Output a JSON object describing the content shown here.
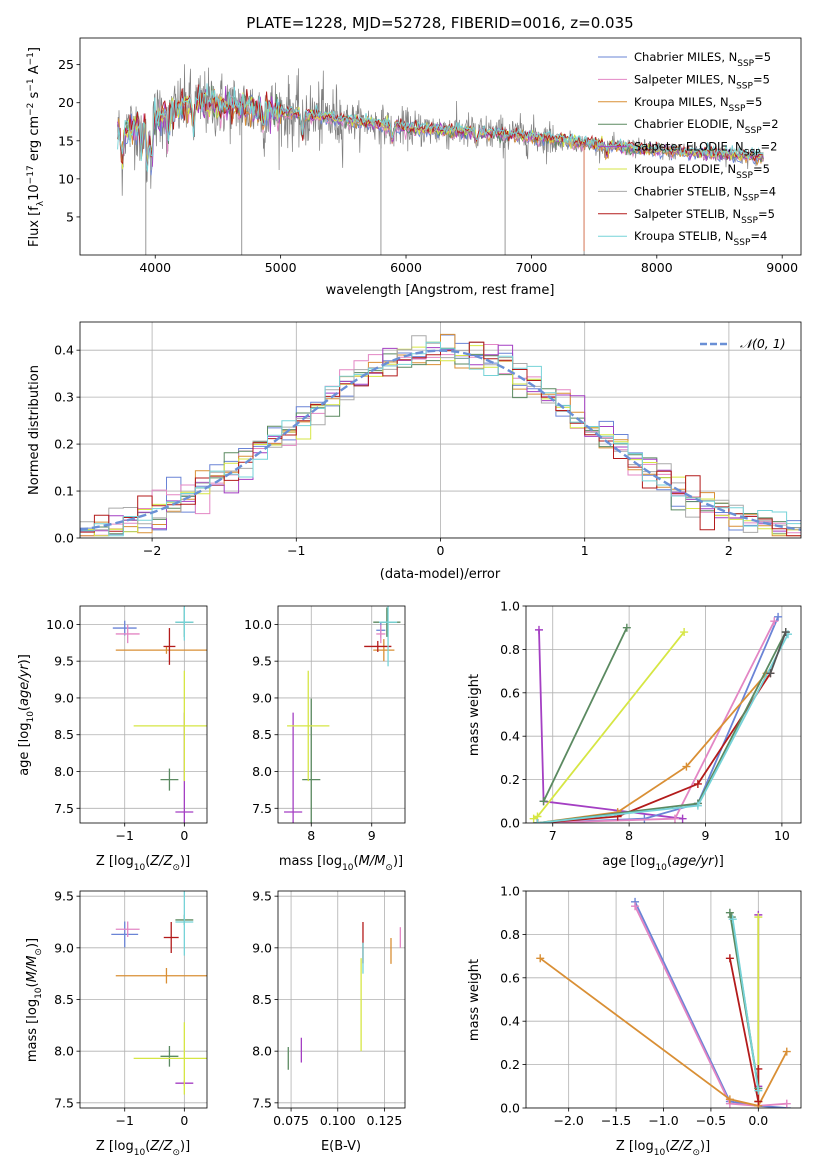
{
  "chart_data": [
    {
      "type": "line",
      "title": "PLATE=1228, MJD=52728, FIBERID=0016, z=0.035",
      "xlabel": "wavelength [Angstrom, rest frame]",
      "ylabel": "Flux [fλ10⁻¹⁷ erg cm⁻² s⁻¹ A⁻¹]",
      "xlim": [
        3400,
        9150
      ],
      "ylim": [
        0,
        28.5
      ],
      "xticks": [
        4000,
        5000,
        6000,
        7000,
        8000,
        9000
      ],
      "yticks": [
        5,
        10,
        15,
        20,
        25
      ],
      "grid": false,
      "legend_position": "upper-right",
      "data_range": [
        3700,
        8850
      ],
      "continuum": {
        "x": [
          3700,
          4000,
          4300,
          4600,
          5000,
          5500,
          6000,
          6500,
          7000,
          7500,
          8000,
          8500,
          8850
        ],
        "y": [
          16,
          18,
          20,
          19.6,
          18.8,
          17.8,
          16.7,
          16.2,
          15.6,
          14.5,
          13.8,
          13.3,
          12.9
        ]
      },
      "absorption_features": [
        [
          3735,
          4
        ],
        [
          3890,
          3.5
        ],
        [
          3935,
          6
        ],
        [
          3970,
          5.5
        ],
        [
          4102,
          3
        ],
        [
          4305,
          3
        ],
        [
          4862,
          2
        ],
        [
          5175,
          3
        ],
        [
          5892,
          2
        ],
        [
          6563,
          1.5
        ],
        [
          7600,
          1
        ]
      ],
      "series": [
        {
          "name": "Chabrier MILES, N",
          "sub": "SSP",
          "suffix": "=5",
          "color": "#6a84d6"
        },
        {
          "name": "Salpeter MILES, N",
          "sub": "SSP",
          "suffix": "=5",
          "color": "#e386c4"
        },
        {
          "name": "Kroupa MILES, N",
          "sub": "SSP",
          "suffix": "=5",
          "color": "#d98f35"
        },
        {
          "name": "Chabrier ELODIE, N",
          "sub": "SSP",
          "suffix": "=2",
          "color": "#5b8a61"
        },
        {
          "name": "Salpeter ELODIE, N",
          "sub": "SSP",
          "suffix": "=2",
          "color": "#a43fc3"
        },
        {
          "name": "Kroupa ELODIE, N",
          "sub": "SSP",
          "suffix": "=5",
          "color": "#d6e644"
        },
        {
          "name": "Chabrier STELIB, N",
          "sub": "SSP",
          "suffix": "=4",
          "color": "#aaaaaa"
        },
        {
          "name": "Salpeter STELIB, N",
          "sub": "SSP",
          "suffix": "=5",
          "color": "#b31b1b"
        },
        {
          "name": "Kroupa STELIB, N",
          "sub": "SSP",
          "suffix": "=4",
          "color": "#76d3d8"
        }
      ],
      "data_color": "#7f7f7f",
      "spikes": [
        [
          3925,
          0
        ],
        [
          4690,
          0
        ],
        [
          5800,
          0
        ],
        [
          6790,
          0
        ],
        [
          7420,
          0
        ]
      ]
    },
    {
      "type": "histogram",
      "xlabel": "(data-model)/error",
      "ylabel": "Normed distribution",
      "xlim": [
        -2.5,
        2.5
      ],
      "ylim": [
        0,
        0.46
      ],
      "xticks": [
        -2,
        -1,
        0,
        1,
        2
      ],
      "yticks": [
        0.0,
        0.1,
        0.2,
        0.3,
        0.4
      ],
      "grid": true,
      "legend_position": "upper-right",
      "legend_label": "𝒩(0, 1)",
      "gaussian_color": "#6a90d6",
      "bin_width": 0.1,
      "bin_start": -2.5,
      "series_colors": [
        "#6a84d6",
        "#e386c4",
        "#d98f35",
        "#5b8a61",
        "#a43fc3",
        "#d6e644",
        "#aaaaaa",
        "#b31b1b",
        "#76d3d8"
      ]
    },
    {
      "type": "errorbar",
      "xlabel": "Z [log₁₀(Z/Z⊙)]",
      "ylabel": "age  [log₁₀(age/yr)]",
      "xlim": [
        -1.75,
        0.38
      ],
      "ylim": [
        7.3,
        10.25
      ],
      "xticks": [
        -1,
        0
      ],
      "yticks": [
        7.5,
        8.0,
        8.5,
        9.0,
        9.5,
        10.0
      ],
      "grid": true,
      "points": [
        {
          "x": -1.0,
          "y": 9.95,
          "xerr": 0.4,
          "yerr": 0.2,
          "color": "#6a84d6"
        },
        {
          "x": -0.95,
          "y": 9.87,
          "xerr": 0.4,
          "yerr": 0.25,
          "color": "#e386c4"
        },
        {
          "x": -0.3,
          "y": 9.65,
          "xerr": 1.7,
          "yerr": 0.1,
          "color": "#d98f35"
        },
        {
          "x": -0.25,
          "y": 7.89,
          "xerr": 0.3,
          "yerr": 0.3,
          "color": "#5b8a61"
        },
        {
          "x": 0.0,
          "y": 7.45,
          "xerr": 0.3,
          "yerr": 2.7,
          "color": "#a43fc3"
        },
        {
          "x": 0.0,
          "y": 8.62,
          "xerr": 1.7,
          "yerr": 1.5,
          "color": "#d6e644"
        },
        {
          "x": -0.25,
          "y": 9.7,
          "xerr": 0.2,
          "yerr": 0.5,
          "color": "#b31b1b"
        },
        {
          "x": 0.0,
          "y": 10.03,
          "xerr": 0.3,
          "yerr": 0.4,
          "color": "#5b8a61"
        },
        {
          "x": 0.0,
          "y": 10.03,
          "xerr": 0.3,
          "yerr": 0.5,
          "color": "#76d3d8"
        }
      ]
    },
    {
      "type": "errorbar",
      "xlabel": "mass [log₁₀(M/M⊙)]",
      "ylabel": "",
      "xlim": [
        7.45,
        9.55
      ],
      "ylim": [
        7.3,
        10.25
      ],
      "xticks": [
        8,
        9
      ],
      "yticks": [
        7.5,
        8.0,
        8.5,
        9.0,
        9.5,
        10.0
      ],
      "grid": true,
      "points": [
        {
          "x": 8.0,
          "y": 7.89,
          "xerr": 0.3,
          "yerr": 2.2,
          "color": "#5b8a61"
        },
        {
          "x": 7.7,
          "y": 7.45,
          "xerr": 0.3,
          "yerr": 2.7,
          "color": "#a43fc3"
        },
        {
          "x": 7.95,
          "y": 8.62,
          "xerr": 0.7,
          "yerr": 1.5,
          "color": "#d6e644"
        },
        {
          "x": 9.15,
          "y": 9.92,
          "xerr": 0.15,
          "yerr": 0.2,
          "color": "#6a84d6"
        },
        {
          "x": 9.15,
          "y": 9.87,
          "xerr": 0.15,
          "yerr": 0.25,
          "color": "#e386c4"
        },
        {
          "x": 9.2,
          "y": 9.65,
          "xerr": 0.35,
          "yerr": 0.3,
          "color": "#d98f35"
        },
        {
          "x": 9.1,
          "y": 9.7,
          "xerr": 0.45,
          "yerr": 0.15,
          "color": "#b31b1b"
        },
        {
          "x": 9.25,
          "y": 10.03,
          "xerr": 0.45,
          "yerr": 0.4,
          "color": "#5b8a61"
        },
        {
          "x": 9.27,
          "y": 10.03,
          "xerr": 0.3,
          "yerr": 1.2,
          "color": "#76d3d8"
        }
      ]
    },
    {
      "type": "line",
      "xlabel": "age  [log₁₀(age/yr)]",
      "ylabel": "mass weight",
      "xlim": [
        6.65,
        10.25
      ],
      "ylim": [
        0,
        1
      ],
      "xticks": [
        7,
        8,
        9,
        10
      ],
      "yticks": [
        0.0,
        0.2,
        0.4,
        0.6,
        0.8,
        1.0
      ],
      "grid": true,
      "series": [
        {
          "color": "#a43fc3",
          "x": [
            6.82,
            6.88,
            8.7
          ],
          "y": [
            0.89,
            0.1,
            0.02
          ]
        },
        {
          "color": "#5b8a61",
          "x": [
            6.88,
            7.97
          ],
          "y": [
            0.1,
            0.9
          ]
        },
        {
          "color": "#d6e644",
          "x": [
            6.75,
            6.8,
            8.72
          ],
          "y": [
            0.02,
            0.03,
            0.88
          ]
        },
        {
          "color": "#6a84d6",
          "x": [
            6.8,
            8.2,
            8.9,
            9.95
          ],
          "y": [
            0.0,
            0.02,
            0.09,
            0.95
          ]
        },
        {
          "color": "#e386c4",
          "x": [
            6.8,
            8.6,
            9.9
          ],
          "y": [
            0.0,
            0.02,
            0.93
          ]
        },
        {
          "color": "#d98f35",
          "x": [
            6.8,
            7.85,
            8.75,
            9.8
          ],
          "y": [
            0.0,
            0.05,
            0.26,
            0.69
          ]
        },
        {
          "color": "#b31b1b",
          "x": [
            6.8,
            7.85,
            8.9,
            9.85
          ],
          "y": [
            0.0,
            0.03,
            0.18,
            0.69
          ]
        },
        {
          "color": "#5b8a61",
          "x": [
            6.8,
            8.9,
            10.05
          ],
          "y": [
            0.0,
            0.09,
            0.88
          ]
        },
        {
          "color": "#76d3d8",
          "x": [
            6.8,
            8.9,
            10.08
          ],
          "y": [
            0.0,
            0.08,
            0.87
          ]
        },
        {
          "color": "#555555",
          "x": [
            9.85,
            10.05
          ],
          "y": [
            0.69,
            0.88
          ]
        }
      ]
    },
    {
      "type": "errorbar",
      "xlabel": "Z [log₁₀(Z/Z⊙)]",
      "ylabel": "mass [log₁₀(M/M⊙)]",
      "xlim": [
        -1.75,
        0.38
      ],
      "ylim": [
        7.45,
        9.55
      ],
      "xticks": [
        -1,
        0
      ],
      "yticks": [
        7.5,
        8.0,
        8.5,
        9.0,
        9.5
      ],
      "grid": true,
      "points": [
        {
          "x": -1.0,
          "y": 9.13,
          "xerr": 0.45,
          "yerr": 0.25,
          "color": "#6a84d6"
        },
        {
          "x": -0.95,
          "y": 9.18,
          "xerr": 0.4,
          "yerr": 0.15,
          "color": "#e386c4"
        },
        {
          "x": -0.3,
          "y": 8.73,
          "xerr": 1.7,
          "yerr": 0.15,
          "color": "#d98f35"
        },
        {
          "x": -0.25,
          "y": 7.95,
          "xerr": 0.3,
          "yerr": 0.2,
          "color": "#5b8a61"
        },
        {
          "x": 0.0,
          "y": 7.69,
          "xerr": 0.3,
          "yerr": 0.05,
          "color": "#a43fc3"
        },
        {
          "x": 0.0,
          "y": 7.93,
          "xerr": 1.7,
          "yerr": 0.7,
          "color": "#d6e644"
        },
        {
          "x": -0.22,
          "y": 9.1,
          "xerr": 0.25,
          "yerr": 0.3,
          "color": "#b31b1b"
        },
        {
          "x": 0.0,
          "y": 9.27,
          "xerr": 0.3,
          "yerr": 0.1,
          "color": "#5b8a61"
        },
        {
          "x": 0.0,
          "y": 9.25,
          "xerr": 0.3,
          "yerr": 0.65,
          "color": "#76d3d8"
        }
      ]
    },
    {
      "type": "errorbar",
      "xlabel": "E(B-V)",
      "ylabel": "",
      "xlim": [
        0.068,
        0.136
      ],
      "ylim": [
        7.45,
        9.55
      ],
      "xticks": [
        0.075,
        0.1,
        0.125
      ],
      "yticks": [
        7.5,
        8.0,
        8.5,
        9.0,
        9.5
      ],
      "grid": true,
      "points": [
        {
          "x": 0.0735,
          "y": 7.93,
          "xerr": 0,
          "yerr": 0.22,
          "color": "#5b8a61"
        },
        {
          "x": 0.0805,
          "y": 8.01,
          "xerr": 0,
          "yerr": 0.24,
          "color": "#a43fc3"
        },
        {
          "x": 0.1125,
          "y": 8.45,
          "xerr": 0,
          "yerr": 0.9,
          "color": "#d6e644"
        },
        {
          "x": 0.1135,
          "y": 9.05,
          "xerr": 0,
          "yerr": 0.4,
          "color": "#b31b1b"
        },
        {
          "x": 0.1135,
          "y": 8.9,
          "xerr": 0,
          "yerr": 0.3,
          "color": "#76d3d8"
        },
        {
          "x": 0.1285,
          "y": 8.97,
          "xerr": 0,
          "yerr": 0.25,
          "color": "#d98f35"
        },
        {
          "x": 0.1335,
          "y": 9.1,
          "xerr": 0,
          "yerr": 0.2,
          "color": "#e386c4"
        }
      ]
    },
    {
      "type": "line",
      "xlabel": "Z [log₁₀(Z/Z⊙)]",
      "ylabel": "mass weight",
      "xlim": [
        -2.45,
        0.45
      ],
      "ylim": [
        0,
        1
      ],
      "xticks": [
        -2.0,
        -1.5,
        -1.0,
        -0.5,
        0.0
      ],
      "yticks": [
        0.0,
        0.2,
        0.4,
        0.6,
        0.8,
        1.0
      ],
      "grid": true,
      "series": [
        {
          "color": "#6a84d6",
          "x": [
            -1.3,
            -0.3,
            0.0,
            0.3
          ],
          "y": [
            0.95,
            0.03,
            0.01,
            0.0
          ]
        },
        {
          "color": "#e386c4",
          "x": [
            -1.3,
            -0.3,
            0.0,
            0.3
          ],
          "y": [
            0.93,
            0.02,
            0.01,
            0.02
          ]
        },
        {
          "color": "#d98f35",
          "x": [
            -2.3,
            -0.3,
            0.0,
            0.3
          ],
          "y": [
            0.69,
            0.04,
            0.01,
            0.26
          ]
        },
        {
          "color": "#5b8a61",
          "x": [
            -0.3,
            0.0
          ],
          "y": [
            0.9,
            0.09
          ]
        },
        {
          "color": "#a43fc3",
          "x": [
            0.0,
            0.0
          ],
          "y": [
            0.89,
            0.1
          ]
        },
        {
          "color": "#d6e644",
          "x": [
            0.0,
            0.0
          ],
          "y": [
            0.88,
            0.03
          ]
        },
        {
          "color": "#b31b1b",
          "x": [
            -0.3,
            0.0,
            0.0
          ],
          "y": [
            0.69,
            0.03,
            0.18
          ]
        },
        {
          "color": "#5b8a61",
          "x": [
            -0.28,
            0.0
          ],
          "y": [
            0.88,
            0.09
          ]
        },
        {
          "color": "#76d3d8",
          "x": [
            -0.27,
            0.0
          ],
          "y": [
            0.87,
            0.08
          ]
        }
      ]
    }
  ]
}
